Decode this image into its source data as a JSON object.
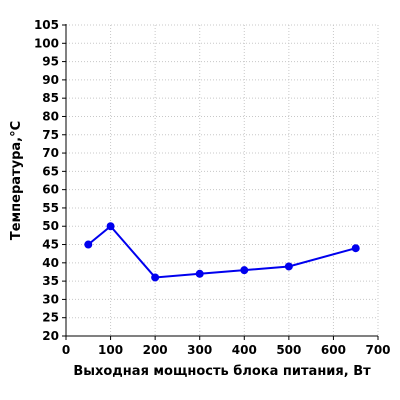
{
  "chart_data": {
    "type": "line",
    "title": "",
    "xlabel": "Выходная мощность блока питания, Вт",
    "ylabel": "Температура,°C",
    "xlim": [
      0,
      700
    ],
    "ylim": [
      20,
      105
    ],
    "xticks": [
      0,
      100,
      200,
      300,
      400,
      500,
      600,
      700
    ],
    "yticks": [
      20,
      25,
      30,
      35,
      40,
      45,
      50,
      55,
      60,
      65,
      70,
      75,
      80,
      85,
      90,
      95,
      100,
      105
    ],
    "grid": true,
    "legend": "none",
    "series": [
      {
        "color": "#0000ee",
        "x": [
          50,
          100,
          200,
          300,
          400,
          500,
          650
        ],
        "y": [
          45,
          50,
          36,
          37,
          38,
          39,
          44
        ]
      }
    ]
  }
}
